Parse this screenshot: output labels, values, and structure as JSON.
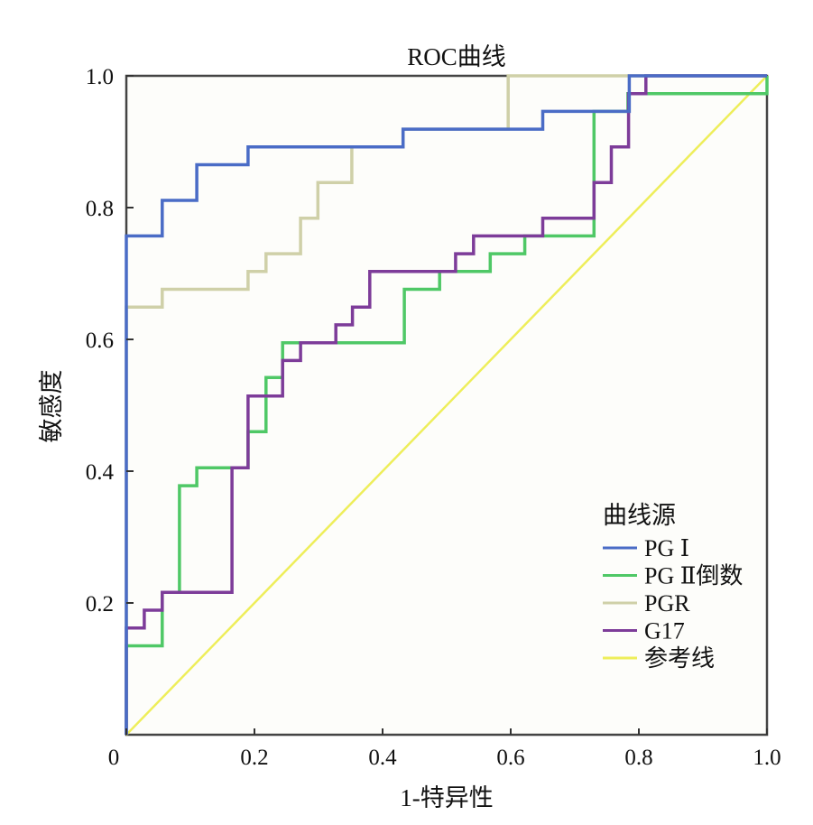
{
  "chart_data": {
    "type": "line",
    "title": "ROC曲线",
    "xlabel": "1-特异性",
    "ylabel": "敏感度",
    "xlim": [
      0,
      1
    ],
    "ylim": [
      0,
      1
    ],
    "x_ticks": [
      "0",
      "0.2",
      "0.4",
      "0.6",
      "0.8",
      "1.0"
    ],
    "y_ticks": [
      "0.2",
      "0.4",
      "0.6",
      "0.8",
      "1.0"
    ],
    "x_tick_values": [
      0,
      0.2,
      0.4,
      0.6,
      0.8,
      1.0
    ],
    "y_tick_values": [
      0.2,
      0.4,
      0.6,
      0.8,
      1.0
    ],
    "grid": false,
    "legend": {
      "title": "曲线源",
      "placement": "bottom-right"
    },
    "series": [
      {
        "name": "PG Ⅰ",
        "color": "#4a6cc6",
        "step": true,
        "points": [
          [
            0,
            0
          ],
          [
            0,
            0.757
          ],
          [
            0.056,
            0.757
          ],
          [
            0.056,
            0.811
          ],
          [
            0.11,
            0.811
          ],
          [
            0.11,
            0.865
          ],
          [
            0.19,
            0.865
          ],
          [
            0.19,
            0.892
          ],
          [
            0.432,
            0.892
          ],
          [
            0.432,
            0.919
          ],
          [
            0.65,
            0.919
          ],
          [
            0.65,
            0.946
          ],
          [
            0.785,
            0.946
          ],
          [
            0.785,
            1.0
          ],
          [
            1,
            1
          ]
        ]
      },
      {
        "name": "PG Ⅱ倒数",
        "color": "#4fc866",
        "step": true,
        "points": [
          [
            0,
            0
          ],
          [
            0,
            0.135
          ],
          [
            0.056,
            0.135
          ],
          [
            0.056,
            0.216
          ],
          [
            0.083,
            0.216
          ],
          [
            0.083,
            0.378
          ],
          [
            0.11,
            0.378
          ],
          [
            0.11,
            0.405
          ],
          [
            0.19,
            0.405
          ],
          [
            0.19,
            0.46
          ],
          [
            0.218,
            0.46
          ],
          [
            0.218,
            0.542
          ],
          [
            0.244,
            0.542
          ],
          [
            0.244,
            0.595
          ],
          [
            0.434,
            0.595
          ],
          [
            0.434,
            0.676
          ],
          [
            0.489,
            0.676
          ],
          [
            0.489,
            0.703
          ],
          [
            0.568,
            0.703
          ],
          [
            0.568,
            0.73
          ],
          [
            0.622,
            0.73
          ],
          [
            0.622,
            0.757
          ],
          [
            0.73,
            0.757
          ],
          [
            0.73,
            0.946
          ],
          [
            0.783,
            0.946
          ],
          [
            0.783,
            0.973
          ],
          [
            1,
            0.973
          ],
          [
            1,
            1
          ]
        ]
      },
      {
        "name": "PGR",
        "color": "#cfd0a8",
        "step": true,
        "points": [
          [
            0,
            0
          ],
          [
            0,
            0.649
          ],
          [
            0.056,
            0.649
          ],
          [
            0.056,
            0.676
          ],
          [
            0.19,
            0.676
          ],
          [
            0.19,
            0.703
          ],
          [
            0.218,
            0.703
          ],
          [
            0.218,
            0.73
          ],
          [
            0.272,
            0.73
          ],
          [
            0.272,
            0.784
          ],
          [
            0.299,
            0.784
          ],
          [
            0.299,
            0.838
          ],
          [
            0.352,
            0.838
          ],
          [
            0.352,
            0.892
          ],
          [
            0.432,
            0.892
          ],
          [
            0.432,
            0.919
          ],
          [
            0.596,
            0.919
          ],
          [
            0.596,
            1.0
          ],
          [
            1,
            1
          ]
        ]
      },
      {
        "name": "G17",
        "color": "#7d3c99",
        "step": true,
        "points": [
          [
            0,
            0
          ],
          [
            0,
            0.162
          ],
          [
            0.028,
            0.162
          ],
          [
            0.028,
            0.189
          ],
          [
            0.056,
            0.189
          ],
          [
            0.056,
            0.216
          ],
          [
            0.165,
            0.216
          ],
          [
            0.165,
            0.405
          ],
          [
            0.19,
            0.405
          ],
          [
            0.19,
            0.514
          ],
          [
            0.244,
            0.514
          ],
          [
            0.244,
            0.568
          ],
          [
            0.272,
            0.568
          ],
          [
            0.272,
            0.595
          ],
          [
            0.327,
            0.595
          ],
          [
            0.327,
            0.622
          ],
          [
            0.353,
            0.622
          ],
          [
            0.353,
            0.649
          ],
          [
            0.38,
            0.649
          ],
          [
            0.38,
            0.703
          ],
          [
            0.514,
            0.703
          ],
          [
            0.514,
            0.73
          ],
          [
            0.542,
            0.73
          ],
          [
            0.542,
            0.757
          ],
          [
            0.65,
            0.757
          ],
          [
            0.65,
            0.784
          ],
          [
            0.73,
            0.784
          ],
          [
            0.73,
            0.838
          ],
          [
            0.757,
            0.838
          ],
          [
            0.757,
            0.892
          ],
          [
            0.784,
            0.892
          ],
          [
            0.784,
            0.973
          ],
          [
            0.811,
            0.973
          ],
          [
            0.811,
            1.0
          ],
          [
            1,
            1
          ]
        ]
      },
      {
        "name": "参考线",
        "color": "#eeee5a",
        "step": false,
        "points": [
          [
            0,
            0
          ],
          [
            1,
            1
          ]
        ]
      }
    ]
  }
}
